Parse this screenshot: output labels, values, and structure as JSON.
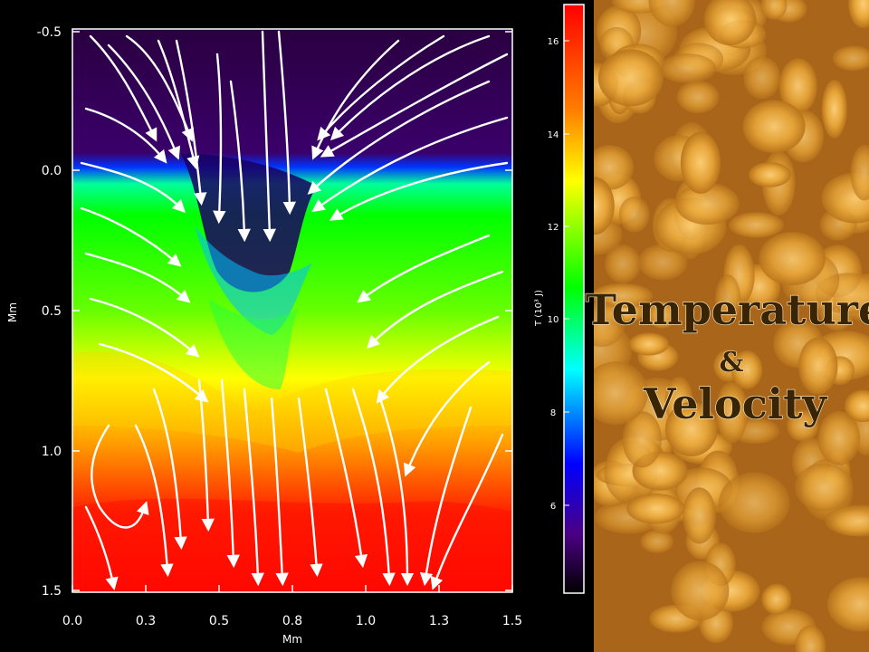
{
  "slide": {
    "title_line1": "Temperature",
    "title_amp": "&",
    "title_line2": "Velocity"
  },
  "plot": {
    "x_axis_label": "Mm",
    "y_axis_label": "Mm",
    "x_ticks": [
      "0.0",
      "0.3",
      "0.5",
      "0.8",
      "1.0",
      "1.3",
      "1.5"
    ],
    "y_ticks": [
      "-0.5",
      "0.0",
      "0.5",
      "1.0",
      "1.5"
    ],
    "colorbar_label": "T (10³ J)",
    "colorbar_ticks": [
      "16",
      "14",
      "12",
      "10",
      "8",
      "6"
    ],
    "colorscale": [
      "#2a0040",
      "#3a006a",
      "#0000ff",
      "#00ffff",
      "#00ff00",
      "#ffff00",
      "#ff8000",
      "#ff0000"
    ]
  }
}
